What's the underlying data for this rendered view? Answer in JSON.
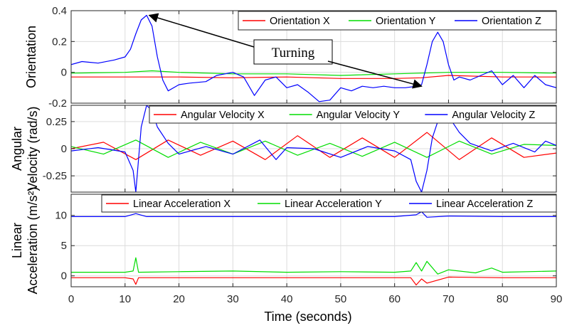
{
  "chart_data": {
    "type": "line",
    "xlabel": "Time (seconds)",
    "xlim": [
      0,
      90
    ],
    "xticks": [
      0,
      10,
      20,
      30,
      40,
      50,
      60,
      70,
      80,
      90
    ],
    "grid": true,
    "legend_placement": "top-right",
    "colors": {
      "x": "#ff0000",
      "y": "#00dd00",
      "z": "#0000ff"
    },
    "annotation": {
      "text": "Turning",
      "targets": [
        [
          14.5,
          0.37
        ],
        [
          65,
          -0.09
        ]
      ],
      "panel": 0
    },
    "panels": [
      {
        "ylabel_lines": [
          "Orientation"
        ],
        "ylim": [
          -0.2,
          0.4
        ],
        "yticks": [
          -0.2,
          0,
          0.2,
          0.4
        ],
        "ytick_labels": [
          "-0.2",
          "0",
          "0.2",
          "0.4"
        ],
        "series": [
          {
            "name": "Orientation X",
            "color": "#ff0000",
            "x": [
              0,
              10,
              20,
              30,
              40,
              50,
              60,
              65,
              70,
              80,
              90
            ],
            "y": [
              -0.03,
              -0.03,
              -0.03,
              -0.035,
              -0.03,
              -0.04,
              -0.04,
              -0.035,
              -0.02,
              -0.03,
              -0.03
            ]
          },
          {
            "name": "Orientation Y",
            "color": "#00dd00",
            "x": [
              0,
              10,
              15,
              20,
              30,
              40,
              50,
              60,
              70,
              80,
              90
            ],
            "y": [
              -0.005,
              0.0,
              0.01,
              0.0,
              -0.01,
              -0.01,
              -0.02,
              -0.01,
              0.0,
              0.0,
              -0.005
            ]
          },
          {
            "name": "Orientation Z",
            "color": "#0000ff",
            "x": [
              0,
              2,
              5,
              8,
              10,
              11,
              12,
              13,
              14,
              15,
              16,
              17,
              18,
              20,
              22,
              25,
              27,
              30,
              32,
              34,
              36,
              38,
              40,
              42,
              44,
              46,
              48,
              50,
              52,
              54,
              56,
              58,
              60,
              62,
              64,
              65,
              66,
              67,
              68,
              69,
              70,
              71,
              72,
              74,
              76,
              78,
              80,
              82,
              84,
              86,
              88,
              90
            ],
            "y": [
              0.05,
              0.07,
              0.06,
              0.08,
              0.1,
              0.15,
              0.25,
              0.34,
              0.37,
              0.3,
              0.1,
              -0.05,
              -0.12,
              -0.08,
              -0.07,
              -0.06,
              -0.02,
              0.0,
              -0.03,
              -0.15,
              -0.05,
              -0.03,
              -0.1,
              -0.08,
              -0.13,
              -0.19,
              -0.18,
              -0.1,
              -0.12,
              -0.09,
              -0.1,
              -0.09,
              -0.1,
              -0.1,
              -0.09,
              -0.08,
              0.05,
              0.2,
              0.26,
              0.2,
              0.05,
              -0.05,
              -0.03,
              -0.05,
              -0.02,
              0.01,
              -0.08,
              -0.02,
              -0.1,
              -0.02,
              -0.08,
              -0.1
            ]
          }
        ]
      },
      {
        "ylabel_lines": [
          "Angular",
          "Velocity (rad/s)"
        ],
        "ylim": [
          -0.4,
          0.4
        ],
        "yticks": [
          -0.25,
          0,
          0.25
        ],
        "ytick_labels": [
          "-0.25",
          "0",
          "0.25"
        ],
        "series": [
          {
            "name": "Angular Velocity X",
            "color": "#ff0000",
            "x": [
              0,
              6,
              12,
              18,
              24,
              30,
              36,
              42,
              48,
              54,
              60,
              66,
              72,
              78,
              84,
              90
            ],
            "y": [
              0.0,
              0.06,
              -0.1,
              0.08,
              -0.06,
              0.07,
              -0.1,
              0.12,
              -0.08,
              0.1,
              -0.08,
              0.15,
              -0.1,
              0.1,
              -0.08,
              -0.04
            ]
          },
          {
            "name": "Angular Velocity Y",
            "color": "#00dd00",
            "x": [
              0,
              6,
              12,
              18,
              24,
              30,
              36,
              42,
              48,
              54,
              60,
              66,
              72,
              78,
              84,
              90
            ],
            "y": [
              0.02,
              -0.05,
              0.08,
              -0.08,
              0.06,
              -0.05,
              0.07,
              -0.06,
              0.05,
              -0.07,
              0.06,
              -0.08,
              0.07,
              -0.05,
              0.04,
              0.03
            ]
          },
          {
            "name": "Angular Velocity Z",
            "color": "#0000ff",
            "x": [
              0,
              5,
              10,
              11.5,
              12,
              13,
              14,
              15,
              16,
              18,
              20,
              25,
              30,
              35,
              38,
              40,
              45,
              50,
              55,
              60,
              63,
              64,
              65,
              66,
              67,
              68,
              70,
              72,
              74,
              78,
              82,
              86,
              88,
              90
            ],
            "y": [
              -0.02,
              0.01,
              -0.03,
              -0.2,
              -0.4,
              0.2,
              0.4,
              0.35,
              0.2,
              0.05,
              -0.05,
              0.02,
              -0.05,
              0.08,
              -0.1,
              0.01,
              0.0,
              -0.08,
              0.02,
              -0.02,
              -0.1,
              -0.3,
              -0.4,
              -0.2,
              0.1,
              0.25,
              0.3,
              0.15,
              0.05,
              -0.02,
              0.05,
              -0.03,
              0.07,
              0.03
            ]
          }
        ]
      },
      {
        "ylabel_lines": [
          "Linear",
          "Acceleration (m/s²)"
        ],
        "ylim": [
          -1.8,
          13.5
        ],
        "yticks": [
          0,
          5,
          10
        ],
        "ytick_labels": [
          "0",
          "5",
          "10"
        ],
        "series": [
          {
            "name": "Linear Acceleration X",
            "color": "#ff0000",
            "x": [
              0,
              10,
              11.5,
              12,
              12.5,
              20,
              30,
              40,
              50,
              60,
              63,
              64,
              65,
              66,
              70,
              80,
              90
            ],
            "y": [
              -0.3,
              -0.3,
              -0.5,
              -1.4,
              -0.3,
              -0.3,
              -0.3,
              -0.3,
              -0.3,
              -0.3,
              -0.3,
              -1.5,
              -0.5,
              -1.2,
              -0.2,
              -0.3,
              -0.3
            ]
          },
          {
            "name": "Linear Acceleration Y",
            "color": "#00dd00",
            "x": [
              0,
              10,
              11.5,
              12,
              12.5,
              20,
              30,
              40,
              50,
              60,
              63,
              64,
              65,
              66,
              68,
              70,
              75,
              78,
              80,
              90
            ],
            "y": [
              0.6,
              0.6,
              0.8,
              3.0,
              0.6,
              0.7,
              0.8,
              0.6,
              0.7,
              0.6,
              0.8,
              2.2,
              0.8,
              2.4,
              0.3,
              1.0,
              0.5,
              1.3,
              0.6,
              0.8
            ]
          },
          {
            "name": "Linear Acceleration Z",
            "color": "#0000ff",
            "x": [
              0,
              10,
              12,
              14,
              20,
              30,
              40,
              50,
              60,
              64,
              65,
              66,
              70,
              80,
              90
            ],
            "y": [
              9.8,
              9.8,
              10.3,
              9.8,
              9.8,
              9.8,
              9.8,
              9.8,
              9.8,
              10.1,
              10.6,
              9.7,
              9.9,
              9.8,
              9.8
            ]
          }
        ]
      }
    ]
  }
}
